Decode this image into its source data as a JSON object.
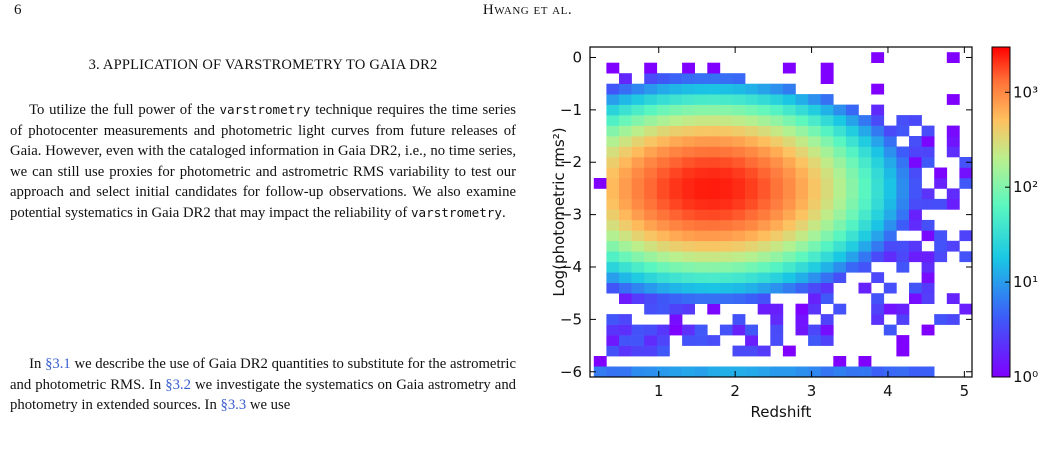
{
  "header": {
    "page_number": "6",
    "authors": "Hwang et al."
  },
  "section": {
    "heading": "3. APPLICATION OF VARSTROMETRY TO GAIA DR2"
  },
  "paragraph1": {
    "s1a": "To utilize the full power of the",
    "s1code": "varstrometry",
    "s1b": "technique requires the time series of photocenter measurements and photometric light curves from future releases of Gaia. However, even with the cataloged information in Gaia DR2, i.e., no time series, we can still use proxies for photometric and astrometric RMS variability to test our approach and select initial candidates for follow-up observations. We also examine potential systematics in Gaia DR2 that may impact the reliability of",
    "s1code2": "varstrometry",
    "s1end": "."
  },
  "paragraph2": {
    "t1": "In",
    "ref1": "§3.1",
    "t2": "we describe the use of Gaia DR2 quantities to substitute for the astrometric and photometric RMS. In",
    "ref2": "§3.2",
    "t3": "we investigate the systematics on Gaia astrometry and photometry in extended sources. In",
    "ref3": "§3.3",
    "t4": "we use"
  },
  "chart_data": {
    "type": "heatmap",
    "xlabel": "Redshift",
    "ylabel": "Log(photometric rms²)",
    "xlim": [
      0.1,
      5.1
    ],
    "ylim": [
      -6.1,
      0.2
    ],
    "x_ticks": [
      "1",
      "2",
      "3",
      "4",
      "5"
    ],
    "y_ticks": [
      "0",
      "−1",
      "−2",
      "−3",
      "−4",
      "−5",
      "−6"
    ],
    "colorbar": {
      "scale": "log",
      "range": [
        1,
        3000
      ],
      "tick_labels": [
        "10⁰",
        "10¹",
        "10²",
        "10³"
      ],
      "colormap": "rainbow"
    },
    "bin_size": {
      "x": 0.165,
      "y": 0.2
    },
    "distribution": {
      "peak": {
        "x": 1.6,
        "y": -2.6,
        "count": 2500
      },
      "low_redshift_edge": 0.3,
      "lower_boundary": -5.7,
      "upper_boundary": -0.3,
      "floor_row_y": -6.0
    }
  }
}
